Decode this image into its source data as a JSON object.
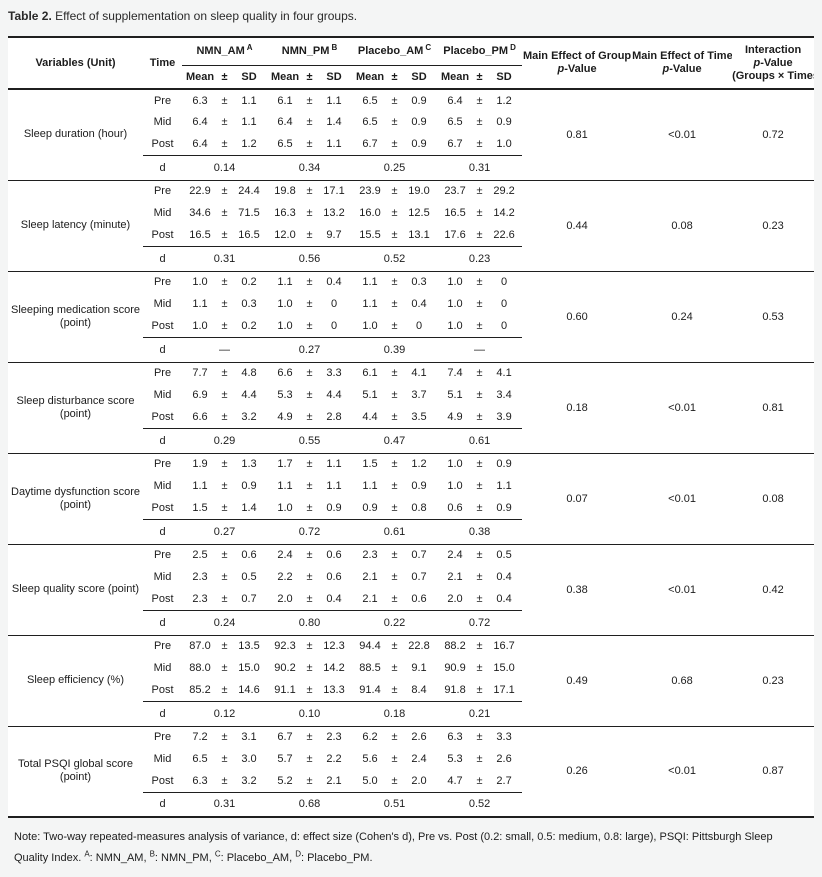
{
  "caption": {
    "label": "Table 2.",
    "text": " Effect of supplementation on sleep quality in four groups."
  },
  "table": {
    "col_variables": "Variables (Unit)",
    "col_time": "Time",
    "groups": [
      {
        "name": "NMN_AM",
        "sup": "A"
      },
      {
        "name": "NMN_PM",
        "sup": "B"
      },
      {
        "name": "Placebo_AM",
        "sup": "C"
      },
      {
        "name": "Placebo_PM",
        "sup": "D"
      }
    ],
    "stat_headers": {
      "mean": "Mean",
      "pm": "±",
      "sd": "SD"
    },
    "col_group_effect": {
      "line1": "Main Effect of Group",
      "p": "p",
      "rest": "-Value"
    },
    "col_time_effect": {
      "line1": "Main Effect of Time",
      "p": "p",
      "rest": "-Value"
    },
    "col_interaction": {
      "line1": "Interaction",
      "p": "p",
      "rest": "-Value",
      "line3": "(Groups × Times)"
    },
    "d_label": "d",
    "blocks": [
      {
        "variable": "Sleep duration (hour)",
        "rows": [
          {
            "time": "Pre",
            "values": [
              [
                "6.3",
                "1.1"
              ],
              [
                "6.1",
                "1.1"
              ],
              [
                "6.5",
                "0.9"
              ],
              [
                "6.4",
                "1.2"
              ]
            ]
          },
          {
            "time": "Mid",
            "values": [
              [
                "6.4",
                "1.1"
              ],
              [
                "6.4",
                "1.4"
              ],
              [
                "6.5",
                "0.9"
              ],
              [
                "6.5",
                "0.9"
              ]
            ]
          },
          {
            "time": "Post",
            "values": [
              [
                "6.4",
                "1.2"
              ],
              [
                "6.5",
                "1.1"
              ],
              [
                "6.7",
                "0.9"
              ],
              [
                "6.7",
                "1.0"
              ]
            ]
          }
        ],
        "d": [
          "0.14",
          "0.34",
          "0.25",
          "0.31"
        ],
        "p_group": "0.81",
        "p_time": "<0.01",
        "p_interaction": "0.72"
      },
      {
        "variable": "Sleep latency (minute)",
        "rows": [
          {
            "time": "Pre",
            "values": [
              [
                "22.9",
                "24.4"
              ],
              [
                "19.8",
                "17.1"
              ],
              [
                "23.9",
                "19.0"
              ],
              [
                "23.7",
                "29.2"
              ]
            ]
          },
          {
            "time": "Mid",
            "values": [
              [
                "34.6",
                "71.5"
              ],
              [
                "16.3",
                "13.2"
              ],
              [
                "16.0",
                "12.5"
              ],
              [
                "16.5",
                "14.2"
              ]
            ]
          },
          {
            "time": "Post",
            "values": [
              [
                "16.5",
                "16.5"
              ],
              [
                "12.0",
                "9.7"
              ],
              [
                "15.5",
                "13.1"
              ],
              [
                "17.6",
                "22.6"
              ]
            ]
          }
        ],
        "d": [
          "0.31",
          "0.56",
          "0.52",
          "0.23"
        ],
        "p_group": "0.44",
        "p_time": "0.08",
        "p_interaction": "0.23"
      },
      {
        "variable": "Sleeping medication score (point)",
        "rows": [
          {
            "time": "Pre",
            "values": [
              [
                "1.0",
                "0.2"
              ],
              [
                "1.1",
                "0.4"
              ],
              [
                "1.1",
                "0.3"
              ],
              [
                "1.0",
                "0"
              ]
            ]
          },
          {
            "time": "Mid",
            "values": [
              [
                "1.1",
                "0.3"
              ],
              [
                "1.0",
                "0"
              ],
              [
                "1.1",
                "0.4"
              ],
              [
                "1.0",
                "0"
              ]
            ]
          },
          {
            "time": "Post",
            "values": [
              [
                "1.0",
                "0.2"
              ],
              [
                "1.0",
                "0"
              ],
              [
                "1.0",
                "0"
              ],
              [
                "1.0",
                "0"
              ]
            ]
          }
        ],
        "d": [
          "—",
          "0.27",
          "0.39",
          "—"
        ],
        "p_group": "0.60",
        "p_time": "0.24",
        "p_interaction": "0.53"
      },
      {
        "variable": "Sleep disturbance score (point)",
        "rows": [
          {
            "time": "Pre",
            "values": [
              [
                "7.7",
                "4.8"
              ],
              [
                "6.6",
                "3.3"
              ],
              [
                "6.1",
                "4.1"
              ],
              [
                "7.4",
                "4.1"
              ]
            ]
          },
          {
            "time": "Mid",
            "values": [
              [
                "6.9",
                "4.4"
              ],
              [
                "5.3",
                "4.4"
              ],
              [
                "5.1",
                "3.7"
              ],
              [
                "5.1",
                "3.4"
              ]
            ]
          },
          {
            "time": "Post",
            "values": [
              [
                "6.6",
                "3.2"
              ],
              [
                "4.9",
                "2.8"
              ],
              [
                "4.4",
                "3.5"
              ],
              [
                "4.9",
                "3.9"
              ]
            ]
          }
        ],
        "d": [
          "0.29",
          "0.55",
          "0.47",
          "0.61"
        ],
        "p_group": "0.18",
        "p_time": "<0.01",
        "p_interaction": "0.81"
      },
      {
        "variable": "Daytime dysfunction score (point)",
        "rows": [
          {
            "time": "Pre",
            "values": [
              [
                "1.9",
                "1.3"
              ],
              [
                "1.7",
                "1.1"
              ],
              [
                "1.5",
                "1.2"
              ],
              [
                "1.0",
                "0.9"
              ]
            ]
          },
          {
            "time": "Mid",
            "values": [
              [
                "1.1",
                "0.9"
              ],
              [
                "1.1",
                "1.1"
              ],
              [
                "1.1",
                "0.9"
              ],
              [
                "1.0",
                "1.1"
              ]
            ]
          },
          {
            "time": "Post",
            "values": [
              [
                "1.5",
                "1.4"
              ],
              [
                "1.0",
                "0.9"
              ],
              [
                "0.9",
                "0.8"
              ],
              [
                "0.6",
                "0.9"
              ]
            ]
          }
        ],
        "d": [
          "0.27",
          "0.72",
          "0.61",
          "0.38"
        ],
        "p_group": "0.07",
        "p_time": "<0.01",
        "p_interaction": "0.08"
      },
      {
        "variable": "Sleep quality score (point)",
        "rows": [
          {
            "time": "Pre",
            "values": [
              [
                "2.5",
                "0.6"
              ],
              [
                "2.4",
                "0.6"
              ],
              [
                "2.3",
                "0.7"
              ],
              [
                "2.4",
                "0.5"
              ]
            ]
          },
          {
            "time": "Mid",
            "values": [
              [
                "2.3",
                "0.5"
              ],
              [
                "2.2",
                "0.6"
              ],
              [
                "2.1",
                "0.7"
              ],
              [
                "2.1",
                "0.4"
              ]
            ]
          },
          {
            "time": "Post",
            "values": [
              [
                "2.3",
                "0.7"
              ],
              [
                "2.0",
                "0.4"
              ],
              [
                "2.1",
                "0.6"
              ],
              [
                "2.0",
                "0.4"
              ]
            ]
          }
        ],
        "d": [
          "0.24",
          "0.80",
          "0.22",
          "0.72"
        ],
        "p_group": "0.38",
        "p_time": "<0.01",
        "p_interaction": "0.42"
      },
      {
        "variable": "Sleep efficiency (%)",
        "rows": [
          {
            "time": "Pre",
            "values": [
              [
                "87.0",
                "13.5"
              ],
              [
                "92.3",
                "12.3"
              ],
              [
                "94.4",
                "22.8"
              ],
              [
                "88.2",
                "16.7"
              ]
            ]
          },
          {
            "time": "Mid",
            "values": [
              [
                "88.0",
                "15.0"
              ],
              [
                "90.2",
                "14.2"
              ],
              [
                "88.5",
                "9.1"
              ],
              [
                "90.9",
                "15.0"
              ]
            ]
          },
          {
            "time": "Post",
            "values": [
              [
                "85.2",
                "14.6"
              ],
              [
                "91.1",
                "13.3"
              ],
              [
                "91.4",
                "8.4"
              ],
              [
                "91.8",
                "17.1"
              ]
            ]
          }
        ],
        "d": [
          "0.12",
          "0.10",
          "0.18",
          "0.21"
        ],
        "p_group": "0.49",
        "p_time": "0.68",
        "p_interaction": "0.23"
      },
      {
        "variable": "Total PSQI global score (point)",
        "rows": [
          {
            "time": "Pre",
            "values": [
              [
                "7.2",
                "3.1"
              ],
              [
                "6.7",
                "2.3"
              ],
              [
                "6.2",
                "2.6"
              ],
              [
                "6.3",
                "3.3"
              ]
            ]
          },
          {
            "time": "Mid",
            "values": [
              [
                "6.5",
                "3.0"
              ],
              [
                "5.7",
                "2.2"
              ],
              [
                "5.6",
                "2.4"
              ],
              [
                "5.3",
                "2.6"
              ]
            ]
          },
          {
            "time": "Post",
            "values": [
              [
                "6.3",
                "3.2"
              ],
              [
                "5.2",
                "2.1"
              ],
              [
                "5.0",
                "2.0"
              ],
              [
                "4.7",
                "2.7"
              ]
            ]
          }
        ],
        "d": [
          "0.31",
          "0.68",
          "0.51",
          "0.52"
        ],
        "p_group": "0.26",
        "p_time": "<0.01",
        "p_interaction": "0.87"
      }
    ]
  },
  "note": {
    "main": "Note: Two-way repeated-measures analysis of variance, d: effect size (Cohen's d), Pre vs. Post (0.2: small, 0.5: medium, 0.8: large), PSQI: Pittsburgh Sleep Quality Index. ",
    "abbrevs": [
      {
        "sup": "A",
        "name": "NMN_AM"
      },
      {
        "sup": "B",
        "name": "NMN_PM"
      },
      {
        "sup": "C",
        "name": "Placebo_AM"
      },
      {
        "sup": "D",
        "name": "Placebo_PM"
      }
    ]
  }
}
